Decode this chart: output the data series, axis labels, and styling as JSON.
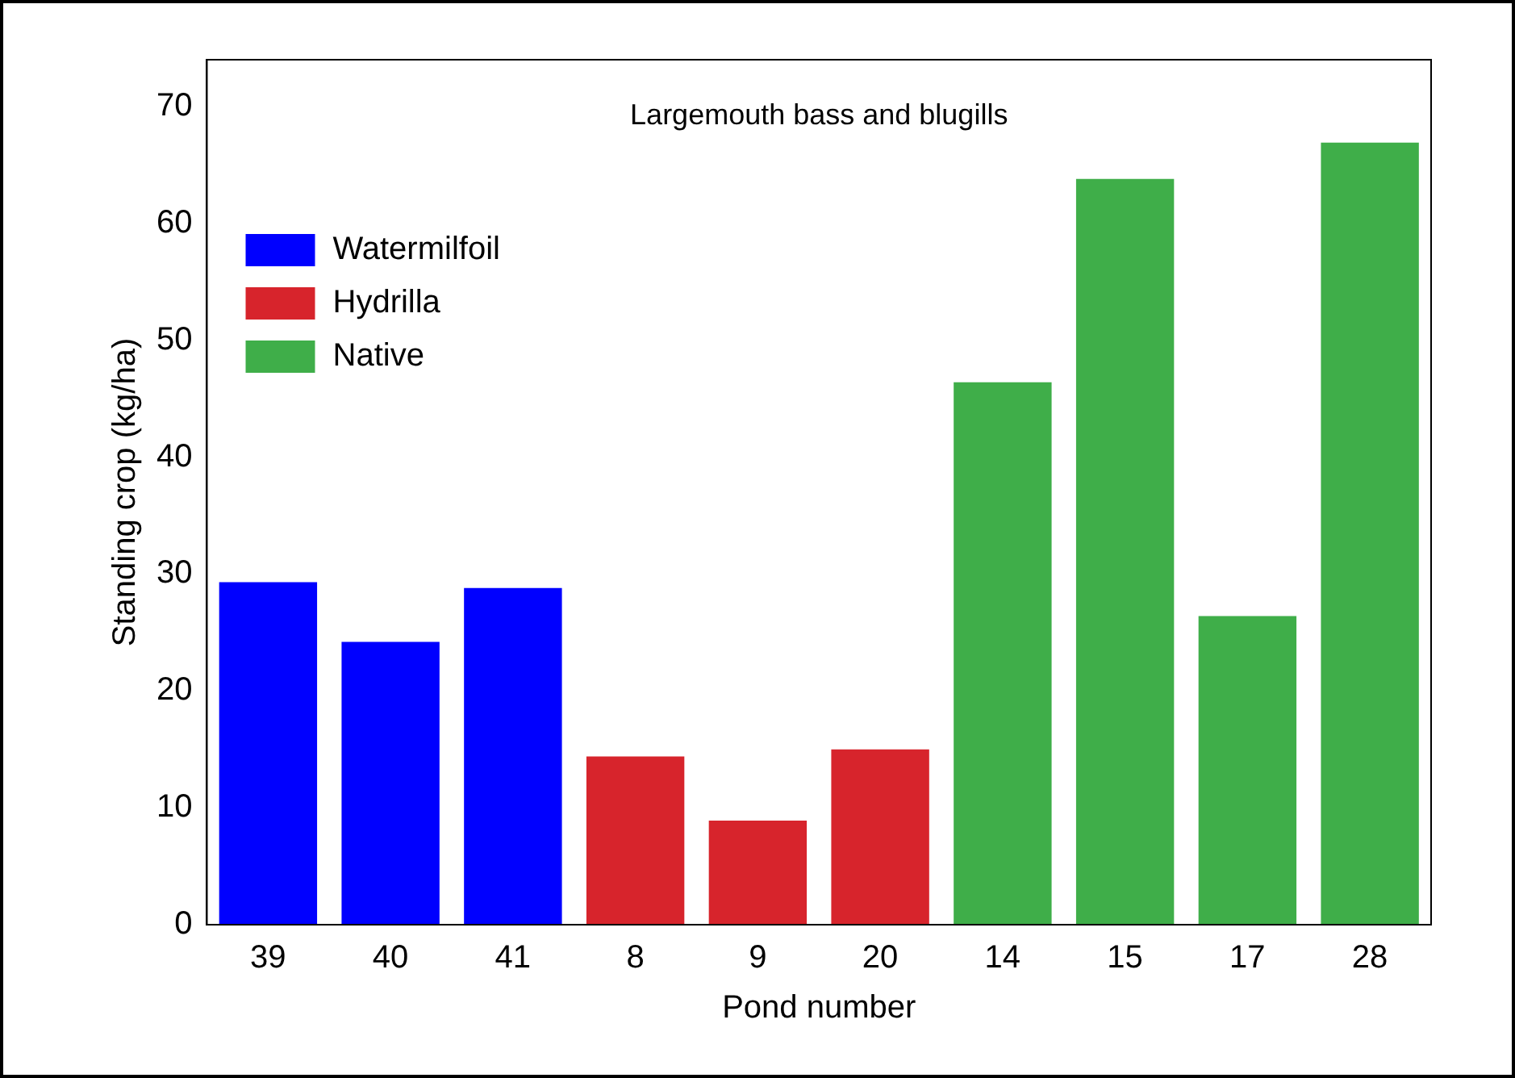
{
  "chart_data": {
    "type": "bar",
    "title": "Largemouth bass and blugills",
    "xlabel": "Pond number",
    "ylabel": "Standing crop (kg/ha)",
    "categories": [
      "39",
      "40",
      "41",
      "8",
      "9",
      "20",
      "14",
      "15",
      "17",
      "28"
    ],
    "series": [
      {
        "name": "Watermilfoil",
        "color": "#0000ff",
        "values": [
          29.3,
          24.2,
          28.8,
          null,
          null,
          null,
          null,
          null,
          null,
          null
        ]
      },
      {
        "name": "Hydrilla",
        "color": "#d7242c",
        "values": [
          null,
          null,
          null,
          14.4,
          8.9,
          15.0,
          null,
          null,
          null,
          null
        ]
      },
      {
        "name": "Native",
        "color": "#3fae49",
        "values": [
          null,
          null,
          null,
          null,
          null,
          null,
          46.4,
          63.8,
          26.4,
          66.9
        ]
      }
    ],
    "ylim": [
      0,
      74
    ],
    "yticks": [
      0,
      10,
      20,
      30,
      40,
      50,
      60,
      70
    ],
    "grid": false,
    "legend": "top left"
  }
}
